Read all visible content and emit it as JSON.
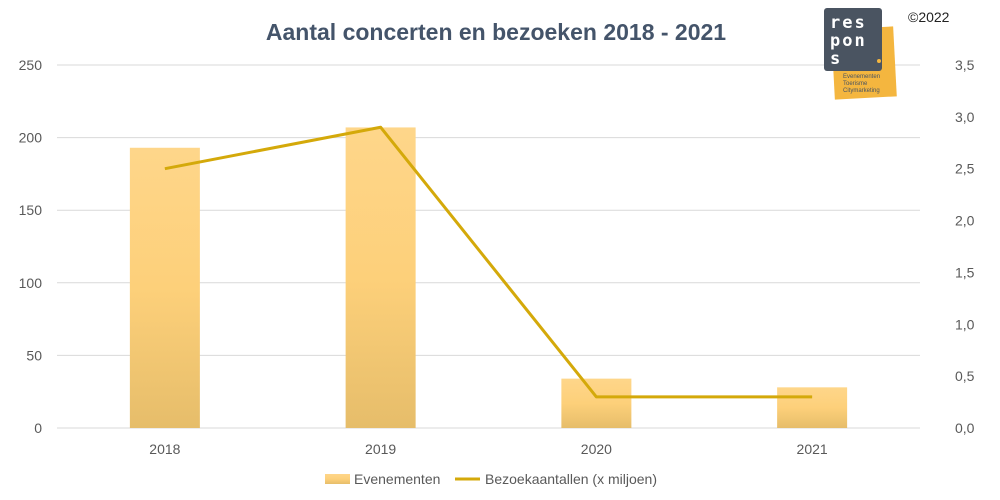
{
  "chart_data": {
    "type": "bar+line",
    "title": "Aantal concerten en bezoeken 2018 - 2021",
    "categories": [
      "2018",
      "2019",
      "2020",
      "2021"
    ],
    "series": [
      {
        "name": "Evenementen",
        "type": "bar",
        "axis": "left",
        "values": [
          193,
          207,
          34,
          28
        ],
        "color": "#fdd282"
      },
      {
        "name": "Bezoekaantallen (x miljoen)",
        "type": "line",
        "axis": "right",
        "values": [
          2.5,
          2.9,
          0.3,
          0.3
        ],
        "color": "#d4a90a"
      }
    ],
    "ylim": [
      0,
      250
    ],
    "yticks": [
      "0",
      "50",
      "100",
      "150",
      "200",
      "250"
    ],
    "y2lim": [
      0,
      3.5
    ],
    "y2ticks": [
      "0,0",
      "0,5",
      "1,0",
      "1,5",
      "2,0",
      "2,5",
      "3,0",
      "3,5"
    ],
    "grid": true,
    "legend": "bottom"
  },
  "logo": {
    "text": "respons",
    "subtitle": [
      "Evenementen",
      "Toerisme",
      "Citymarketing"
    ],
    "copyright": "©2022"
  }
}
